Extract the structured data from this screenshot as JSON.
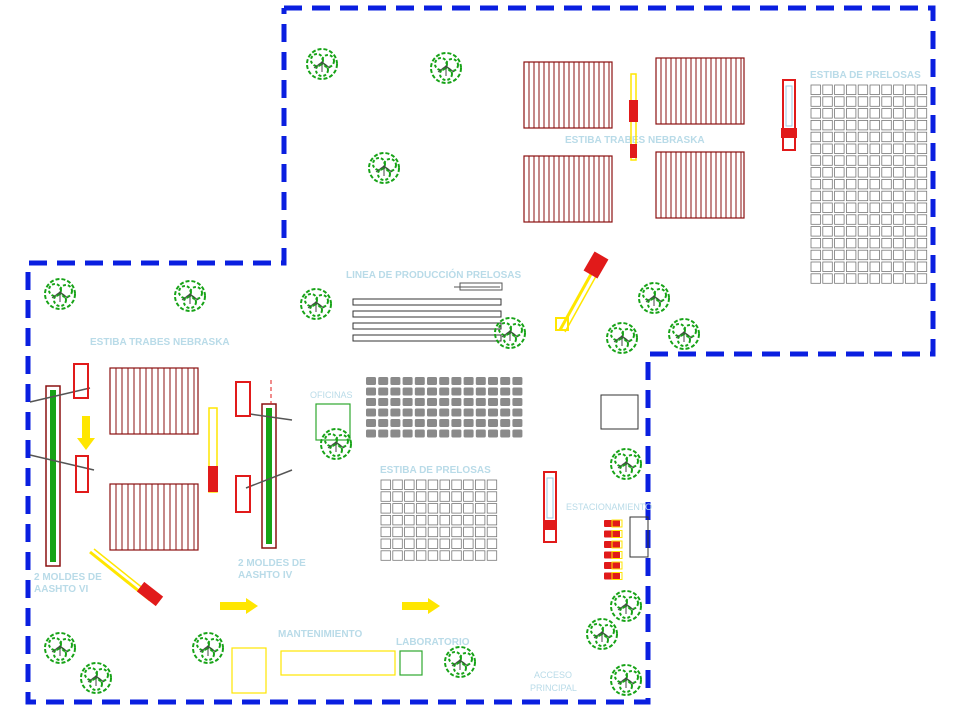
{
  "colors": {
    "boundary": "#0a1fe0",
    "stack": "#8b1010",
    "grid": "#777777",
    "tree": "#17a317",
    "crane": "#e11a1a",
    "yellow": "#ffe600",
    "label": "#b9dbe8",
    "green_box": "#2ea82e"
  },
  "labels": {
    "estiba_nebraska_top": "ESTIBA TRABES NEBRASKA",
    "estiba_prelosas_top": "ESTIBA DE PRELOSAS",
    "linea_produccion": "LINEA DE PRODUCCIÓN PRELOSAS",
    "estiba_nebraska_left": "ESTIBA TRABES NEBRASKA",
    "oficinas": "OFICINAS",
    "estiba_prelosas_mid": "ESTIBA DE PRELOSAS",
    "estacionamiento": "ESTACIONAMIENTO",
    "moldes_vi_line1": "2 MOLDES DE",
    "moldes_vi_line2": "AASHTO VI",
    "moldes_iv_line1": "2 MOLDES DE",
    "moldes_iv_line2": "AASHTO IV",
    "mantenimiento": "MANTENIMIENTO",
    "laboratorio": "LABORATORIO",
    "acceso_line1": "ACCESO",
    "acceso_line2": "PRINCIPAL"
  },
  "icons": {
    "tree": "tree-icon",
    "crane": "gantry-crane-icon",
    "arrow": "direction-arrow-icon",
    "vehicle": "vehicle-icon"
  }
}
